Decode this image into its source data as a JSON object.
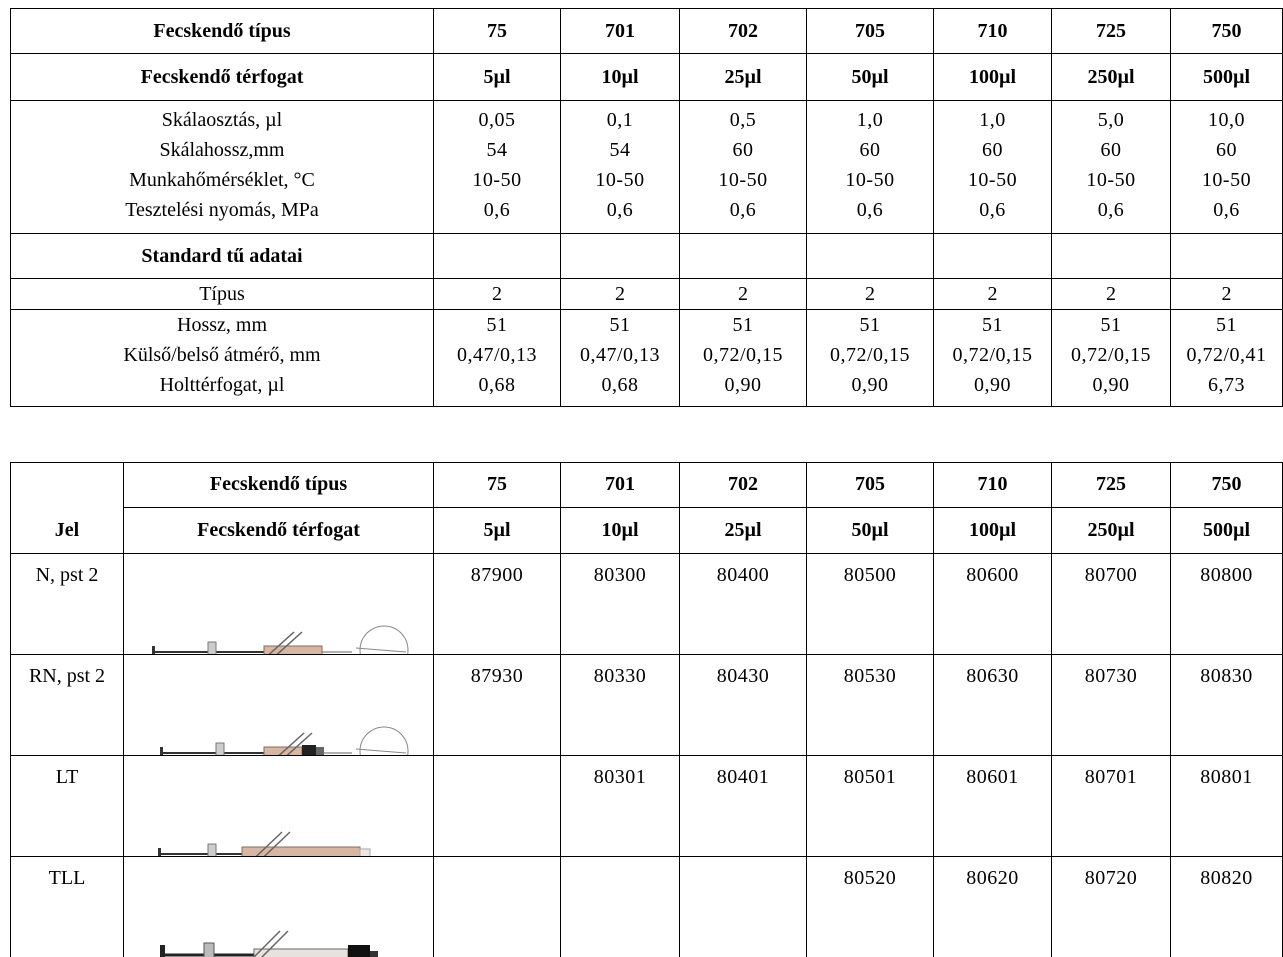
{
  "spec_table": {
    "syringe_type_label": "Fecskendő típus",
    "syringe_volume_label": "Fecskendő térfogat",
    "types": [
      "75",
      "701",
      "702",
      "705",
      "710",
      "725",
      "750"
    ],
    "volumes": [
      "5µl",
      "10µl",
      "25µl",
      "50µl",
      "100µl",
      "250µl",
      "500µl"
    ],
    "specs": [
      {
        "label": "Skálaosztás, µl",
        "values": [
          "0,05",
          "0,1",
          "0,5",
          "1,0",
          "1,0",
          "5,0",
          "10,0"
        ]
      },
      {
        "label": "Skálahossz,mm",
        "values": [
          "54",
          "54",
          "60",
          "60",
          "60",
          "60",
          "60"
        ]
      },
      {
        "label": "Munkahőmérséklet, °C",
        "values": [
          "10-50",
          "10-50",
          "10-50",
          "10-50",
          "10-50",
          "10-50",
          "10-50"
        ]
      },
      {
        "label": "Tesztelési nyomás, MPa",
        "values": [
          "0,6",
          "0,6",
          "0,6",
          "0,6",
          "0,6",
          "0,6",
          "0,6"
        ]
      }
    ],
    "needle_header": "Standard tű adatai",
    "needle_type": {
      "label": "Típus",
      "values": [
        "2",
        "2",
        "2",
        "2",
        "2",
        "2",
        "2"
      ]
    },
    "needle_specs": [
      {
        "label": "Hossz, mm",
        "values": [
          "51",
          "51",
          "51",
          "51",
          "51",
          "51",
          "51"
        ]
      },
      {
        "label": "Külső/belső átmérő, mm",
        "values": [
          "0,47/0,13",
          "0,47/0,13",
          "0,72/0,15",
          "0,72/0,15",
          "0,72/0,15",
          "0,72/0,15",
          "0,72/0,41"
        ]
      },
      {
        "label": "Holttérfogat, µl",
        "values": [
          "0,68",
          "0,68",
          "0,90",
          "0,90",
          "0,90",
          "0,90",
          "6,73"
        ]
      }
    ]
  },
  "order_table": {
    "jel_label": "Jel",
    "syringe_type_label": "Fecskendő típus",
    "syringe_volume_label": "Fecskendő térfogat",
    "types": [
      "75",
      "701",
      "702",
      "705",
      "710",
      "725",
      "750"
    ],
    "volumes": [
      "5µl",
      "10µl",
      "25µl",
      "50µl",
      "100µl",
      "250µl",
      "500µl"
    ],
    "rows": [
      {
        "jel": "N, pst 2",
        "icon": "syringe-n-icon",
        "codes": [
          "87900",
          "80300",
          "80400",
          "80500",
          "80600",
          "80700",
          "80800"
        ]
      },
      {
        "jel": "RN, pst 2",
        "icon": "syringe-rn-icon",
        "codes": [
          "87930",
          "80330",
          "80430",
          "80530",
          "80630",
          "80730",
          "80830"
        ]
      },
      {
        "jel": "LT",
        "icon": "syringe-lt-icon",
        "codes": [
          "",
          "80301",
          "80401",
          "80501",
          "80601",
          "80701",
          "80801"
        ]
      },
      {
        "jel": "TLL",
        "icon": "syringe-tll-icon",
        "codes": [
          "",
          "",
          "",
          "80520",
          "80620",
          "80720",
          "80820"
        ]
      }
    ]
  }
}
